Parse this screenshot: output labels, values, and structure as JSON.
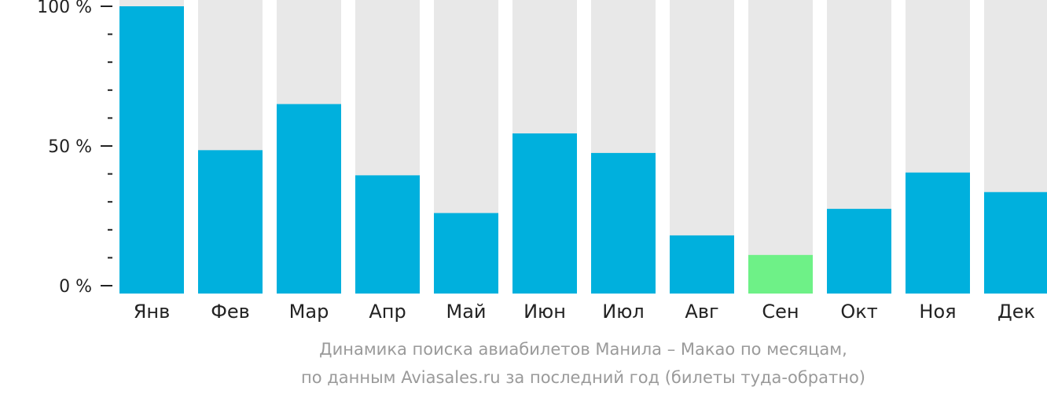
{
  "chart_data": {
    "type": "bar",
    "categories": [
      "Янв",
      "Фев",
      "Мар",
      "Апр",
      "Май",
      "Июн",
      "Июл",
      "Авг",
      "Сен",
      "Окт",
      "Ноя",
      "Дек"
    ],
    "values": [
      100,
      48.5,
      65,
      39.5,
      26,
      54.5,
      47.5,
      18,
      11,
      27.5,
      40.5,
      33.5
    ],
    "ylim": [
      0,
      100
    ],
    "y_ticks": [
      {
        "value": 0,
        "label": "0 %"
      },
      {
        "value": 50,
        "label": "50 %"
      },
      {
        "value": 100,
        "label": "100 %"
      }
    ],
    "minor_tick_step": 10,
    "caption_lines": [
      "Динамика поиска авиабилетов Манила – Макао по месяцам,",
      "по данным Aviasales.ru за последний год (билеты туда-обратно)"
    ],
    "highlight_category": "Сен",
    "grid": false,
    "colors": {
      "bar": "#00b0dd",
      "highlight": "#6ef187",
      "track": "#e8e8e8",
      "axis": "#222222"
    }
  }
}
